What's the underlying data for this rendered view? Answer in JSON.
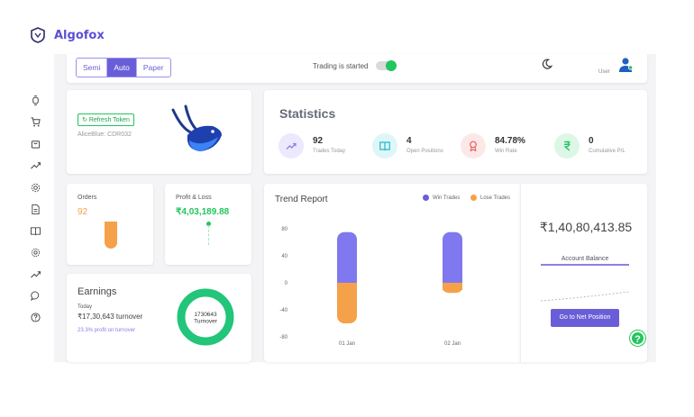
{
  "app": {
    "name": "Algofox"
  },
  "sidebar": {
    "items": [
      {
        "icon": "watch-icon"
      },
      {
        "icon": "cart-icon"
      },
      {
        "icon": "bag-icon"
      },
      {
        "icon": "trending-up-icon"
      },
      {
        "icon": "settings-icon"
      },
      {
        "icon": "document-icon"
      },
      {
        "icon": "book-icon"
      },
      {
        "icon": "gear-icon"
      },
      {
        "icon": "trending-up-icon"
      },
      {
        "icon": "chat-icon"
      },
      {
        "icon": "help-icon"
      }
    ]
  },
  "topbar": {
    "modes": [
      "Semi",
      "Auto",
      "Paper"
    ],
    "active_mode": "Auto",
    "trading_status": "Trading is started",
    "trading_toggle_on": true,
    "user_label": "User"
  },
  "broker": {
    "refresh_label": "Refresh Token",
    "client_id": "AliceBlue: CDR032"
  },
  "statistics": {
    "title": "Statistics",
    "items": [
      {
        "value": "92",
        "label": "Trades Today",
        "icon": "trend-icon",
        "color": "#8a80e6"
      },
      {
        "value": "4",
        "label": "Open Positions",
        "icon": "book-icon",
        "color": "#22b8c9"
      },
      {
        "value": "84.78%",
        "label": "Win Rate",
        "icon": "award-icon",
        "color": "#e85d5d"
      },
      {
        "value": "0",
        "label": "Cumulative P/L",
        "icon": "rupee-icon",
        "color": "#22c55e"
      }
    ]
  },
  "orders": {
    "label": "Orders",
    "value": "92"
  },
  "profit_loss": {
    "label": "Profit & Loss",
    "value": "₹4,03,189.88"
  },
  "earnings": {
    "title": "Earnings",
    "today_label": "Today",
    "turnover": "₹17,30,643 turnover",
    "profit": "23.3% profit on turnover",
    "donut_value": "1730643",
    "donut_label": "Turnover"
  },
  "trend": {
    "title": "Trend Report",
    "legend_win": "Win Trades",
    "legend_lose": "Lose Trades"
  },
  "balance": {
    "value": "₹1,40,80,413.85",
    "label": "Account Balance",
    "button": "Go to Net Position"
  },
  "chart_data": {
    "type": "bar",
    "title": "Trend Report",
    "categories": [
      "01 Jan",
      "02 Jan"
    ],
    "series": [
      {
        "name": "Win Trades",
        "values": [
          75,
          75
        ],
        "color": "#8078ee"
      },
      {
        "name": "Lose Trades",
        "values": [
          -60,
          -15
        ],
        "color": "#f5a14a"
      }
    ],
    "ylim": [
      -80,
      80
    ],
    "yticks": [
      80,
      40,
      0,
      -40,
      -80
    ],
    "stacked": true,
    "legend_position": "top-right",
    "grid": false
  }
}
